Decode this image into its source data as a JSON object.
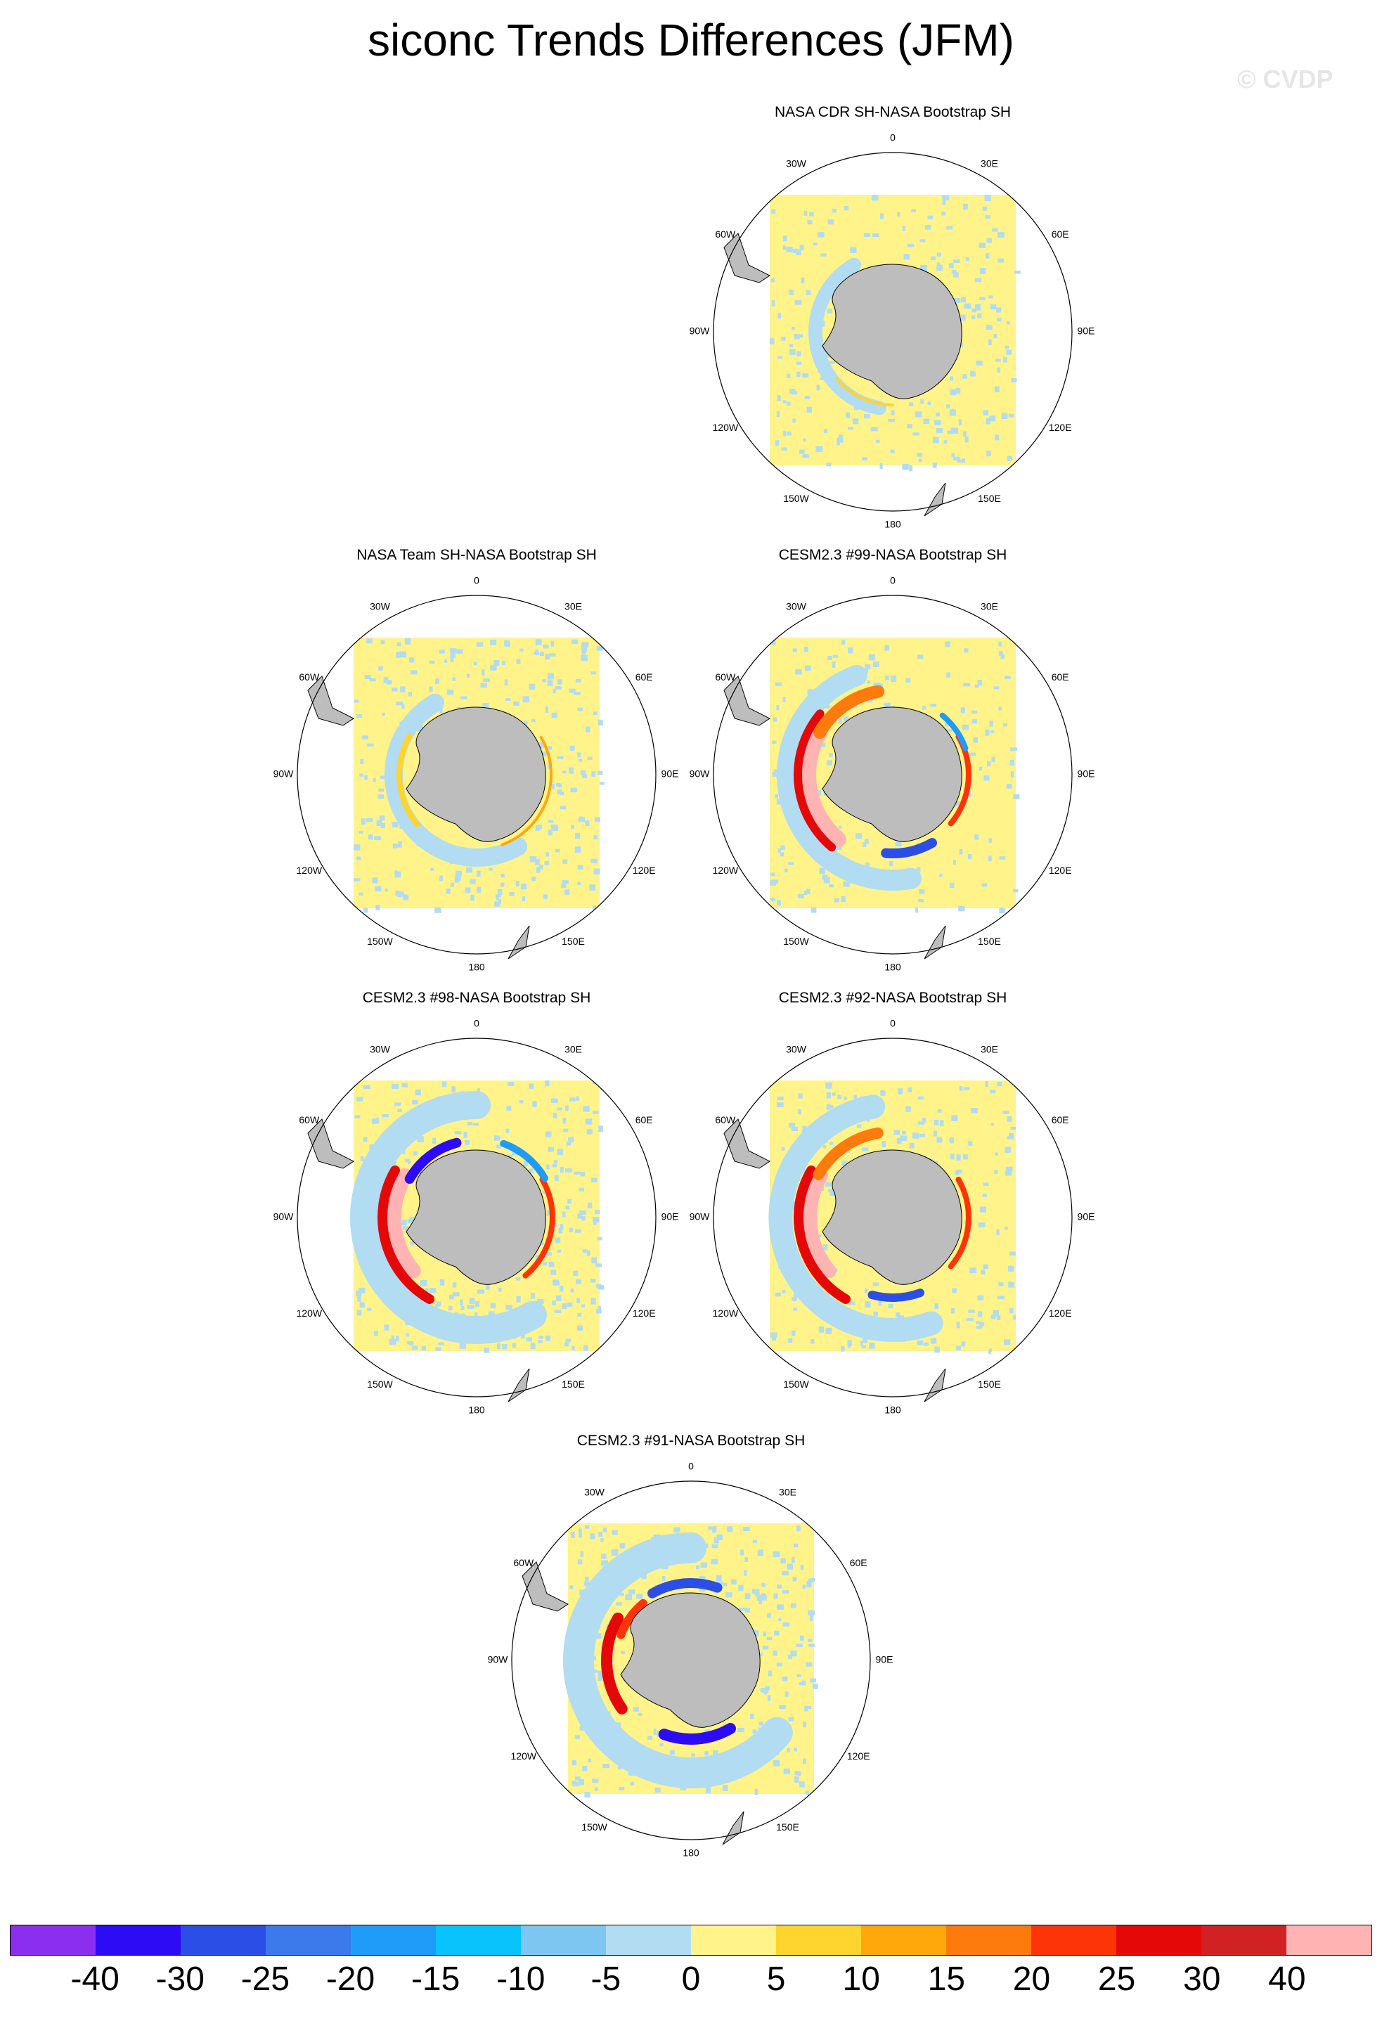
{
  "title": "siconc Trends Differences (JFM)",
  "watermark": "© CVDP",
  "lon_labels": {
    "top": "0",
    "bottom": "180",
    "n30w": "30W",
    "n30e": "30E",
    "n60w": "60W",
    "n60e": "60E",
    "n90w": "90W",
    "n90e": "90E",
    "n120w": "120W",
    "n120e": "120E",
    "n150w": "150W",
    "n150e": "150E"
  },
  "panels": [
    {
      "title": "NASA CDR SH-NASA Bootstrap SH",
      "pattern": "cdr"
    },
    {
      "title": "NASA Team SH-NASA Bootstrap SH",
      "pattern": "team"
    },
    {
      "title": "CESM2.3 #99-NASA Bootstrap SH",
      "pattern": "m99"
    },
    {
      "title": "CESM2.3 #98-NASA Bootstrap SH",
      "pattern": "m98"
    },
    {
      "title": "CESM2.3 #92-NASA Bootstrap SH",
      "pattern": "m92"
    },
    {
      "title": "CESM2.3 #91-NASA Bootstrap SH",
      "pattern": "m91"
    }
  ],
  "colorbar": {
    "colors": [
      "#8b2ef0",
      "#2d0cf5",
      "#2b4ee6",
      "#3c79ea",
      "#1f9bfa",
      "#08c3fc",
      "#7ec6f2",
      "#b1dcf2",
      "#fff38a",
      "#fed42e",
      "#fea80c",
      "#fd7b0c",
      "#fe3409",
      "#e50808",
      "#d02222",
      "#ffb3b3"
    ],
    "labels": [
      "-40",
      "-30",
      "-25",
      "-20",
      "-15",
      "-10",
      "-5",
      "0",
      "5",
      "10",
      "15",
      "20",
      "25",
      "30",
      "40"
    ]
  }
}
